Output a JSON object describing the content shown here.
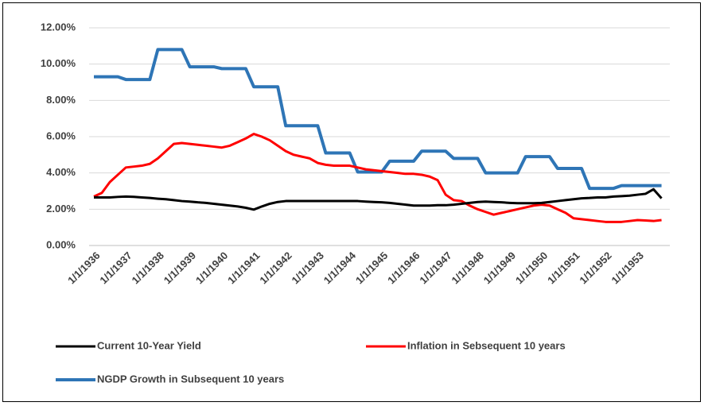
{
  "chart_data": {
    "type": "line",
    "categories": [
      "1/1/1936",
      null,
      null,
      null,
      "1/1/1937",
      null,
      null,
      null,
      "1/1/1938",
      null,
      null,
      null,
      "1/1/1939",
      null,
      null,
      null,
      "1/1/1940",
      null,
      null,
      null,
      "1/1/1941",
      null,
      null,
      null,
      "1/1/1942",
      null,
      null,
      null,
      "1/1/1943",
      null,
      null,
      null,
      "1/1/1944",
      null,
      null,
      null,
      "1/1/1945",
      null,
      null,
      null,
      "1/1/1946",
      null,
      null,
      null,
      "1/1/1947",
      null,
      null,
      null,
      "1/1/1948",
      null,
      null,
      null,
      "1/1/1949",
      null,
      null,
      null,
      "1/1/1950",
      null,
      null,
      null,
      "1/1/1951",
      null,
      null,
      null,
      "1/1/1952",
      null,
      null,
      null,
      "1/1/1953",
      null,
      null,
      null
    ],
    "series": [
      {
        "name": "Current 10-Year Yield",
        "color": "#000000",
        "values": [
          2.65,
          2.65,
          2.65,
          2.68,
          2.7,
          2.68,
          2.65,
          2.62,
          2.58,
          2.55,
          2.5,
          2.45,
          2.42,
          2.38,
          2.35,
          2.3,
          2.25,
          2.2,
          2.15,
          2.08,
          1.98,
          2.15,
          2.3,
          2.4,
          2.45,
          2.45,
          2.45,
          2.45,
          2.45,
          2.45,
          2.45,
          2.45,
          2.45,
          2.45,
          2.42,
          2.4,
          2.38,
          2.35,
          2.3,
          2.25,
          2.2,
          2.2,
          2.2,
          2.22,
          2.22,
          2.25,
          2.3,
          2.35,
          2.4,
          2.42,
          2.4,
          2.38,
          2.35,
          2.33,
          2.33,
          2.33,
          2.35,
          2.4,
          2.45,
          2.5,
          2.55,
          2.6,
          2.62,
          2.65,
          2.65,
          2.7,
          2.72,
          2.75,
          2.8,
          2.85,
          3.1,
          2.6
        ]
      },
      {
        "name": "Inflation in Sebsequent 10 years",
        "color": "#ff0000",
        "values": [
          2.7,
          2.9,
          3.5,
          3.9,
          4.3,
          4.35,
          4.4,
          4.5,
          4.8,
          5.2,
          5.6,
          5.65,
          5.6,
          5.55,
          5.5,
          5.45,
          5.4,
          5.5,
          5.7,
          5.9,
          6.15,
          6.0,
          5.8,
          5.5,
          5.2,
          5.0,
          4.9,
          4.8,
          4.55,
          4.45,
          4.4,
          4.4,
          4.4,
          4.3,
          4.2,
          4.15,
          4.1,
          4.05,
          4.0,
          3.95,
          3.95,
          3.9,
          3.8,
          3.6,
          2.8,
          2.5,
          2.45,
          2.2,
          2.0,
          1.85,
          1.7,
          1.8,
          1.9,
          2.0,
          2.1,
          2.2,
          2.25,
          2.2,
          2.0,
          1.8,
          1.5,
          1.45,
          1.4,
          1.35,
          1.3,
          1.3,
          1.3,
          1.35,
          1.4,
          1.38,
          1.35,
          1.4
        ]
      },
      {
        "name": "NGDP Growth in Subsequent 10 years",
        "color": "#2e75b6",
        "values": [
          9.3,
          9.3,
          9.3,
          9.3,
          9.15,
          9.15,
          9.15,
          9.15,
          10.8,
          10.8,
          10.8,
          10.8,
          9.85,
          9.85,
          9.85,
          9.85,
          9.75,
          9.75,
          9.75,
          9.75,
          8.75,
          8.75,
          8.75,
          8.75,
          6.6,
          6.6,
          6.6,
          6.6,
          6.6,
          5.1,
          5.1,
          5.1,
          5.1,
          4.05,
          4.05,
          4.05,
          4.05,
          4.65,
          4.65,
          4.65,
          4.65,
          5.2,
          5.2,
          5.2,
          5.2,
          4.8,
          4.8,
          4.8,
          4.8,
          4.0,
          4.0,
          4.0,
          4.0,
          4.0,
          4.9,
          4.9,
          4.9,
          4.9,
          4.25,
          4.25,
          4.25,
          4.25,
          3.15,
          3.15,
          3.15,
          3.15,
          3.3,
          3.3,
          3.3,
          3.3,
          3.3,
          3.3
        ]
      }
    ],
    "ylim": [
      0,
      12
    ],
    "yticks": [
      {
        "value": 0,
        "label": "0.00%"
      },
      {
        "value": 2,
        "label": "2.00%"
      },
      {
        "value": 4,
        "label": "4.00%"
      },
      {
        "value": 6,
        "label": "6.00%"
      },
      {
        "value": 8,
        "label": "8.00%"
      },
      {
        "value": 10,
        "label": "10.00%"
      },
      {
        "value": 12,
        "label": "12.00%"
      }
    ],
    "grid": true
  }
}
